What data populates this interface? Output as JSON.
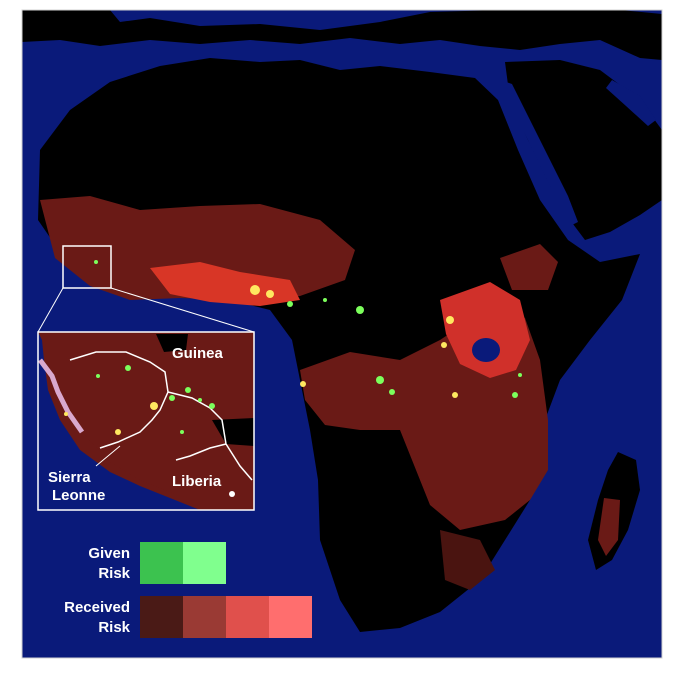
{
  "inset_labels": {
    "guinea": "Guinea",
    "sierra_leone_line1": "Sierra",
    "sierra_leone_line2": "Leonne",
    "liberia": "Liberia"
  },
  "legend": {
    "given_risk_line1": "Given",
    "given_risk_line2": "Risk",
    "received_risk_line1": "Received",
    "received_risk_line2": "Risk",
    "given_swatches": [
      "#3cc24f",
      "#80ff8e"
    ],
    "received_swatches": [
      "#4a1a16",
      "#9a3a34",
      "#e0504c",
      "#ff6e6e"
    ]
  },
  "colors": {
    "ocean": "#0a1a7a",
    "land": "#000000",
    "risk_dark": "#5a1512",
    "risk_mid": "#8e221c",
    "risk_bright": "#e03a2c",
    "given": "#7cff5c",
    "hot": "#ffe860"
  }
}
